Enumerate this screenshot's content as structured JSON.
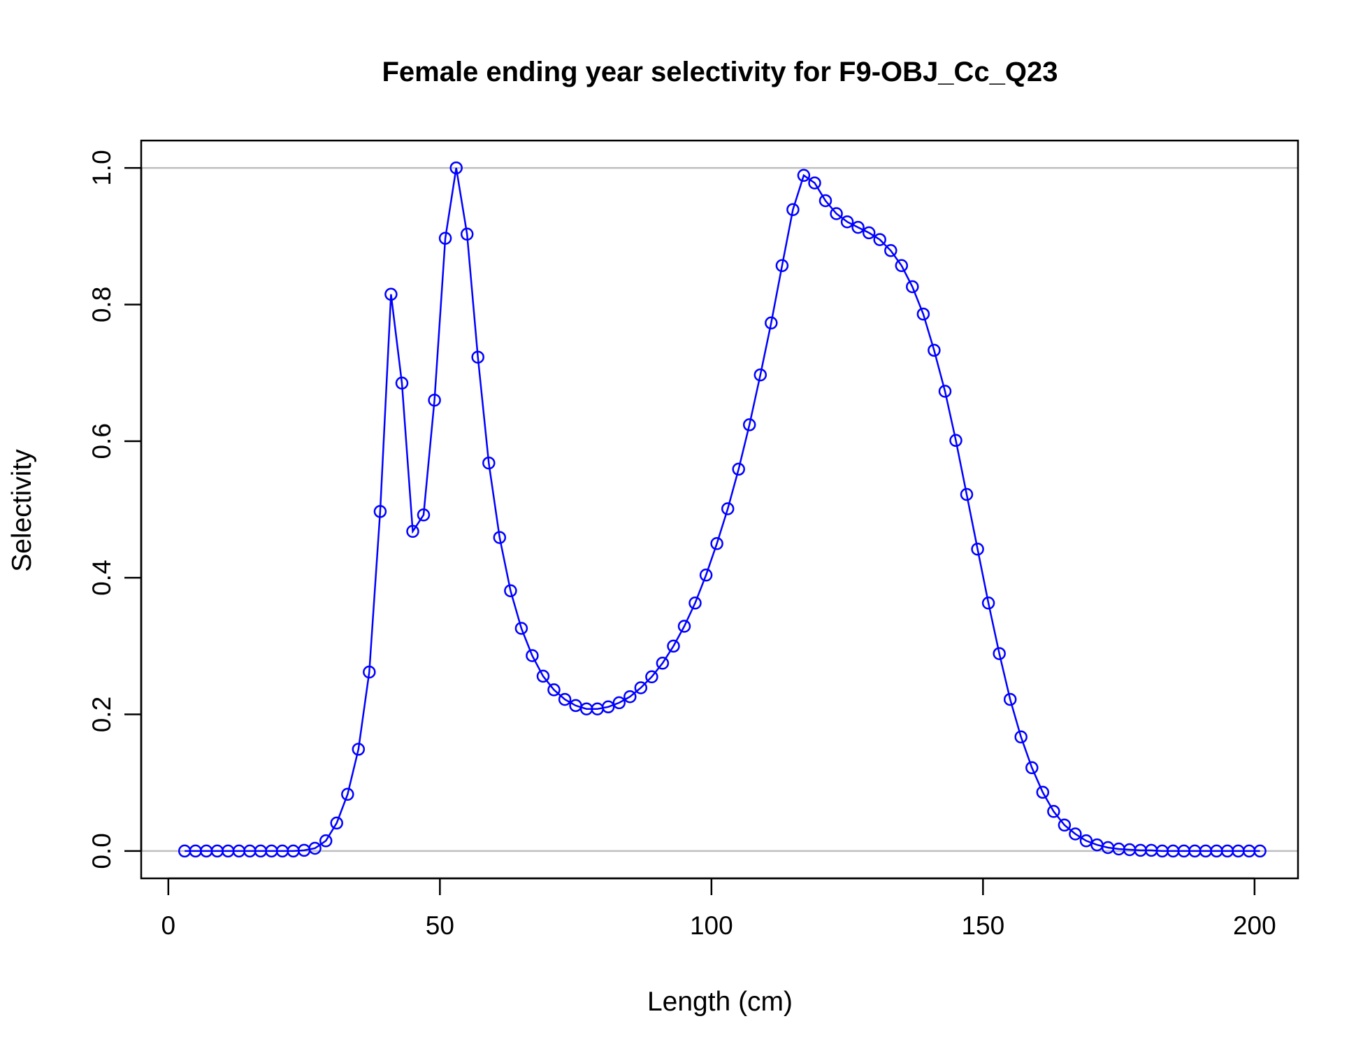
{
  "chart_data": {
    "type": "line",
    "title": "Female ending year selectivity for F9-OBJ_Cc_Q23",
    "xlabel": "Length (cm)",
    "ylabel": "Selectivity",
    "xlim": [
      -5,
      208
    ],
    "ylim": [
      -0.04,
      1.04
    ],
    "xticks": [
      0,
      50,
      100,
      150,
      200
    ],
    "yticks": [
      0.0,
      0.2,
      0.4,
      0.6,
      0.8,
      1.0
    ],
    "xtick_labels": [
      "0",
      "50",
      "100",
      "150",
      "200"
    ],
    "ytick_labels": [
      "0.0",
      "0.2",
      "0.4",
      "0.6",
      "0.8",
      "1.0"
    ],
    "reference_lines_y": [
      0,
      1
    ],
    "grid": false,
    "colors": {
      "series": "#0000ff",
      "reference": "#bebebe"
    },
    "series": [
      {
        "marker": "open-circle",
        "x": [
          3,
          5,
          7,
          9,
          11,
          13,
          15,
          17,
          19,
          21,
          23,
          25,
          27,
          29,
          31,
          33,
          35,
          37,
          39,
          41,
          43,
          45,
          47,
          49,
          51,
          53,
          55,
          57,
          59,
          61,
          63,
          65,
          67,
          69,
          71,
          73,
          75,
          77,
          79,
          81,
          83,
          85,
          87,
          89,
          91,
          93,
          95,
          97,
          99,
          101,
          103,
          105,
          107,
          109,
          111,
          113,
          115,
          117,
          119,
          121,
          123,
          125,
          127,
          129,
          131,
          133,
          135,
          137,
          139,
          141,
          143,
          145,
          147,
          149,
          151,
          153,
          155,
          157,
          159,
          161,
          163,
          165,
          167,
          169,
          171,
          173,
          175,
          177,
          179,
          181,
          183,
          185,
          187,
          189,
          191,
          193,
          195,
          197,
          199,
          201
        ],
        "y": [
          0,
          0,
          0,
          0,
          0,
          0,
          0,
          0,
          0,
          0,
          0,
          0.001,
          0.004,
          0.015,
          0.041,
          0.083,
          0.149,
          0.262,
          0.497,
          0.815,
          0.685,
          0.468,
          0.492,
          0.66,
          0.897,
          1.0,
          0.903,
          0.723,
          0.568,
          0.459,
          0.381,
          0.326,
          0.286,
          0.256,
          0.236,
          0.222,
          0.213,
          0.208,
          0.208,
          0.211,
          0.217,
          0.226,
          0.239,
          0.255,
          0.275,
          0.3,
          0.329,
          0.363,
          0.404,
          0.45,
          0.501,
          0.559,
          0.624,
          0.697,
          0.773,
          0.857,
          0.939,
          0.989,
          0.978,
          0.952,
          0.933,
          0.921,
          0.913,
          0.905,
          0.895,
          0.879,
          0.857,
          0.826,
          0.786,
          0.733,
          0.673,
          0.601,
          0.522,
          0.442,
          0.363,
          0.289,
          0.222,
          0.167,
          0.122,
          0.086,
          0.058,
          0.038,
          0.025,
          0.015,
          0.009,
          0.005,
          0.003,
          0.002,
          0.001,
          0.001,
          0,
          0,
          0,
          0,
          0,
          0,
          0,
          0,
          0,
          0
        ]
      }
    ]
  }
}
